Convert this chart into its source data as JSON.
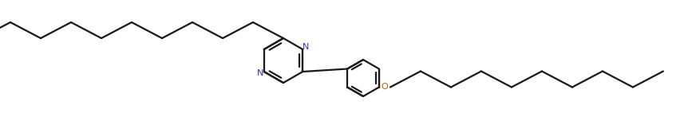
{
  "bg_color": "#ffffff",
  "bond_color": "#1a1a1a",
  "N_color": "#3333bb",
  "O_color": "#bb6600",
  "bond_width": 1.6,
  "figsize": [
    8.72,
    1.52
  ],
  "dpi": 100,
  "xlim": [
    0,
    8.72
  ],
  "ylim": [
    0,
    1.52
  ]
}
